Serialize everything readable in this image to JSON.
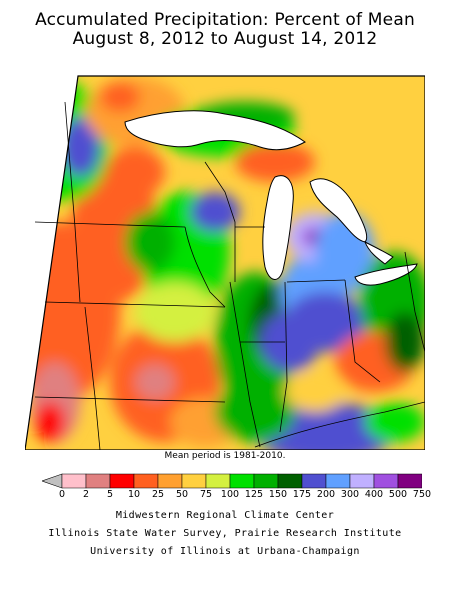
{
  "title": {
    "line1": "Accumulated Precipitation: Percent of Mean",
    "line2": "August 8, 2012 to August 14, 2012"
  },
  "note": "Mean period is 1981-2010.",
  "legend": {
    "labels": [
      "0",
      "2",
      "5",
      "10",
      "25",
      "50",
      "75",
      "100",
      "125",
      "150",
      "175",
      "200",
      "300",
      "400",
      "500",
      "750"
    ],
    "colors": [
      "#ffc0cb",
      "#e08080",
      "#ff0000",
      "#ff6020",
      "#ffa030",
      "#ffd040",
      "#d4f040",
      "#00e000",
      "#00b000",
      "#006000",
      "#5050d0",
      "#60a0ff",
      "#c0b0ff",
      "#a050e0",
      "#800080"
    ]
  },
  "credits": {
    "line1": "Midwestern Regional Climate Center",
    "line2": "Illinois State Water Survey, Prairie Research Institute",
    "line3": "University of Illinois at Urbana-Champaign"
  }
}
